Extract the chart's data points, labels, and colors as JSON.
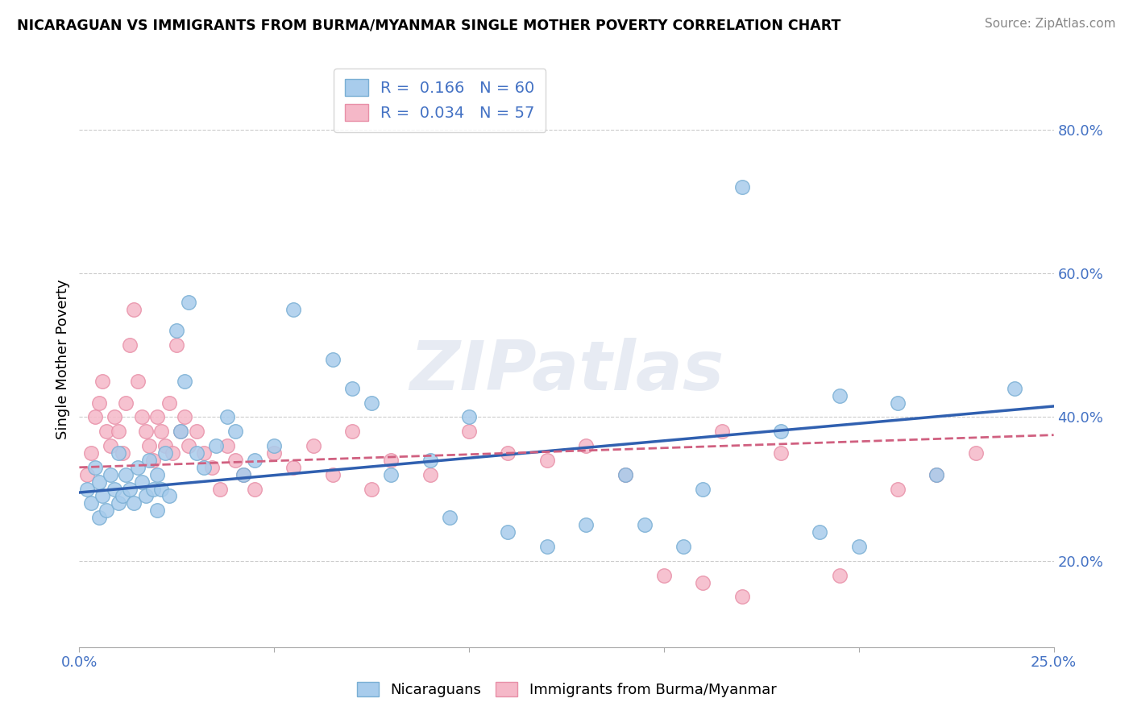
{
  "title": "NICARAGUAN VS IMMIGRANTS FROM BURMA/MYANMAR SINGLE MOTHER POVERTY CORRELATION CHART",
  "source": "Source: ZipAtlas.com",
  "ylabel": "Single Mother Poverty",
  "xlim": [
    0.0,
    0.25
  ],
  "ylim": [
    0.08,
    0.88
  ],
  "xticks": [
    0.0,
    0.05,
    0.1,
    0.15,
    0.2,
    0.25
  ],
  "xticklabels": [
    "0.0%",
    "",
    "",
    "",
    "",
    "25.0%"
  ],
  "yticks_right": [
    0.2,
    0.4,
    0.6,
    0.8
  ],
  "ytick_right_labels": [
    "20.0%",
    "40.0%",
    "60.0%",
    "80.0%"
  ],
  "blue_color": "#a8ccec",
  "blue_edge_color": "#7aafd4",
  "pink_color": "#f5b8c8",
  "pink_edge_color": "#e890a8",
  "blue_line_color": "#3060b0",
  "pink_line_color": "#d06080",
  "blue_R": 0.166,
  "blue_N": 60,
  "pink_R": 0.034,
  "pink_N": 57,
  "legend_label_blue": "Nicaraguans",
  "legend_label_pink": "Immigrants from Burma/Myanmar",
  "watermark": "ZIPatlas",
  "blue_scatter_x": [
    0.002,
    0.003,
    0.004,
    0.005,
    0.005,
    0.006,
    0.007,
    0.008,
    0.009,
    0.01,
    0.01,
    0.011,
    0.012,
    0.013,
    0.014,
    0.015,
    0.016,
    0.017,
    0.018,
    0.019,
    0.02,
    0.02,
    0.021,
    0.022,
    0.023,
    0.025,
    0.026,
    0.027,
    0.028,
    0.03,
    0.032,
    0.035,
    0.038,
    0.04,
    0.042,
    0.045,
    0.05,
    0.055,
    0.065,
    0.07,
    0.075,
    0.08,
    0.09,
    0.095,
    0.1,
    0.11,
    0.12,
    0.13,
    0.14,
    0.145,
    0.155,
    0.16,
    0.17,
    0.18,
    0.19,
    0.195,
    0.2,
    0.21,
    0.22,
    0.24
  ],
  "blue_scatter_y": [
    0.3,
    0.28,
    0.33,
    0.31,
    0.26,
    0.29,
    0.27,
    0.32,
    0.3,
    0.28,
    0.35,
    0.29,
    0.32,
    0.3,
    0.28,
    0.33,
    0.31,
    0.29,
    0.34,
    0.3,
    0.32,
    0.27,
    0.3,
    0.35,
    0.29,
    0.52,
    0.38,
    0.45,
    0.56,
    0.35,
    0.33,
    0.36,
    0.4,
    0.38,
    0.32,
    0.34,
    0.36,
    0.55,
    0.48,
    0.44,
    0.42,
    0.32,
    0.34,
    0.26,
    0.4,
    0.24,
    0.22,
    0.25,
    0.32,
    0.25,
    0.22,
    0.3,
    0.72,
    0.38,
    0.24,
    0.43,
    0.22,
    0.42,
    0.32,
    0.44
  ],
  "pink_scatter_x": [
    0.002,
    0.003,
    0.004,
    0.005,
    0.006,
    0.007,
    0.008,
    0.009,
    0.01,
    0.011,
    0.012,
    0.013,
    0.014,
    0.015,
    0.016,
    0.017,
    0.018,
    0.019,
    0.02,
    0.021,
    0.022,
    0.023,
    0.024,
    0.025,
    0.026,
    0.027,
    0.028,
    0.03,
    0.032,
    0.034,
    0.036,
    0.038,
    0.04,
    0.042,
    0.045,
    0.05,
    0.055,
    0.06,
    0.065,
    0.07,
    0.075,
    0.08,
    0.09,
    0.1,
    0.11,
    0.12,
    0.13,
    0.14,
    0.15,
    0.16,
    0.165,
    0.17,
    0.18,
    0.195,
    0.21,
    0.22,
    0.23
  ],
  "pink_scatter_y": [
    0.32,
    0.35,
    0.4,
    0.42,
    0.45,
    0.38,
    0.36,
    0.4,
    0.38,
    0.35,
    0.42,
    0.5,
    0.55,
    0.45,
    0.4,
    0.38,
    0.36,
    0.34,
    0.4,
    0.38,
    0.36,
    0.42,
    0.35,
    0.5,
    0.38,
    0.4,
    0.36,
    0.38,
    0.35,
    0.33,
    0.3,
    0.36,
    0.34,
    0.32,
    0.3,
    0.35,
    0.33,
    0.36,
    0.32,
    0.38,
    0.3,
    0.34,
    0.32,
    0.38,
    0.35,
    0.34,
    0.36,
    0.32,
    0.18,
    0.17,
    0.38,
    0.15,
    0.35,
    0.18,
    0.3,
    0.32,
    0.35
  ]
}
